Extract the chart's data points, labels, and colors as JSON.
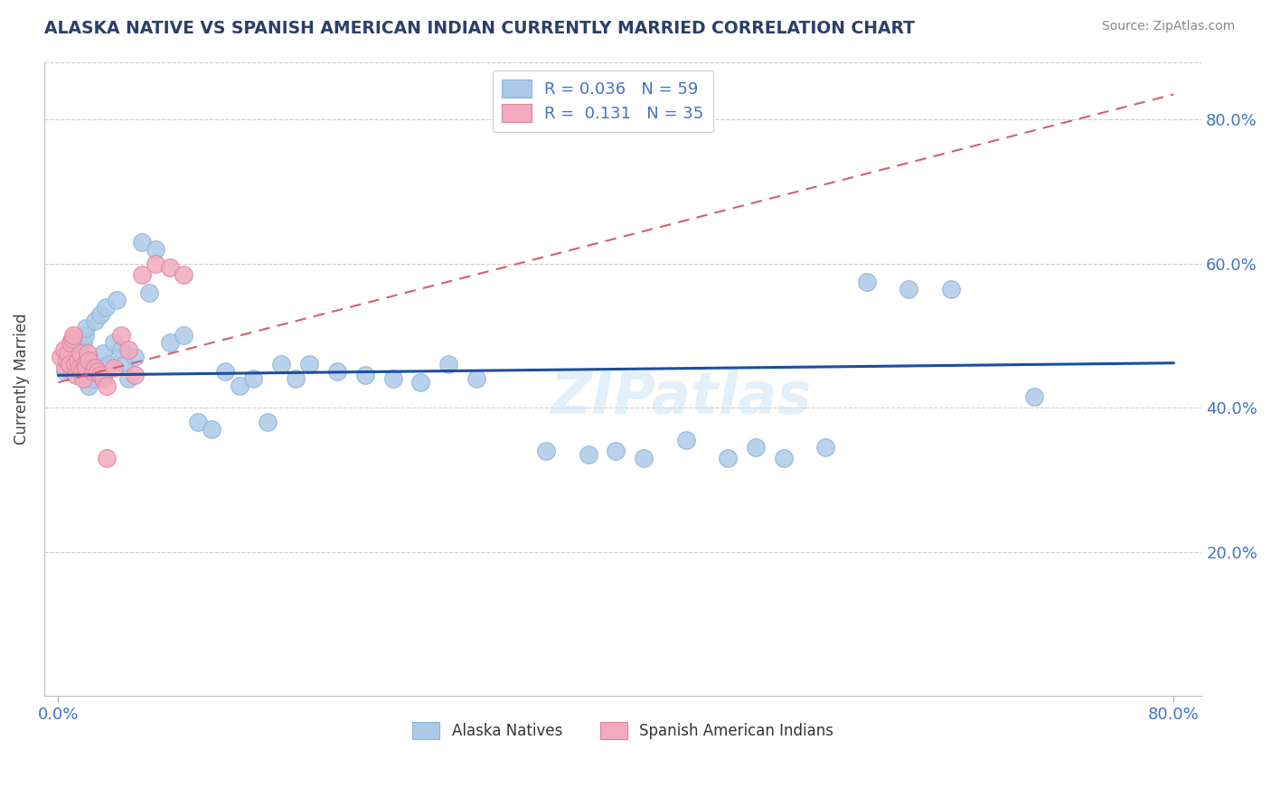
{
  "title": "ALASKA NATIVE VS SPANISH AMERICAN INDIAN CURRENTLY MARRIED CORRELATION CHART",
  "source": "Source: ZipAtlas.com",
  "ylabel": "Currently Married",
  "xlim": [
    -0.01,
    0.82
  ],
  "ylim": [
    0.0,
    0.88
  ],
  "ytick_vals": [
    0.2,
    0.4,
    0.6,
    0.8
  ],
  "ytick_labels": [
    "20.0%",
    "40.0%",
    "60.0%",
    "80.0%"
  ],
  "xtick_vals": [
    0.0,
    0.8
  ],
  "xtick_labels": [
    "0.0%",
    "80.0%"
  ],
  "grid_color": "#cccccc",
  "bg_color": "#ffffff",
  "watermark": "ZIPatlas",
  "alaska_color": "#adc9e8",
  "alaska_edge": "#8ab4d8",
  "spanish_color": "#f2abbe",
  "spanish_edge": "#e080a0",
  "trend_alaska_color": "#1a4fa0",
  "trend_spanish_color": "#d06070",
  "R_alaska": 0.036,
  "N_alaska": 59,
  "R_spanish": 0.131,
  "N_spanish": 35,
  "legend_labels": [
    "Alaska Natives",
    "Spanish American Indians"
  ],
  "ak_trend_x": [
    0.0,
    0.8
  ],
  "ak_trend_y": [
    0.445,
    0.462
  ],
  "sp_trend_x": [
    0.0,
    0.8
  ],
  "sp_trend_y": [
    0.435,
    0.835
  ],
  "alaska_x": [
    0.005,
    0.008,
    0.01,
    0.012,
    0.013,
    0.015,
    0.016,
    0.017,
    0.018,
    0.019,
    0.02,
    0.022,
    0.024,
    0.025,
    0.026,
    0.028,
    0.03,
    0.032,
    0.034,
    0.036,
    0.04,
    0.042,
    0.045,
    0.048,
    0.05,
    0.055,
    0.06,
    0.065,
    0.07,
    0.08,
    0.09,
    0.1,
    0.11,
    0.12,
    0.13,
    0.14,
    0.15,
    0.16,
    0.17,
    0.18,
    0.2,
    0.22,
    0.24,
    0.26,
    0.28,
    0.3,
    0.35,
    0.38,
    0.4,
    0.42,
    0.45,
    0.48,
    0.5,
    0.52,
    0.55,
    0.58,
    0.61,
    0.64,
    0.7
  ],
  "alaska_y": [
    0.45,
    0.46,
    0.475,
    0.48,
    0.465,
    0.47,
    0.455,
    0.445,
    0.49,
    0.5,
    0.51,
    0.43,
    0.465,
    0.44,
    0.52,
    0.45,
    0.53,
    0.475,
    0.54,
    0.46,
    0.49,
    0.55,
    0.48,
    0.46,
    0.44,
    0.47,
    0.63,
    0.56,
    0.62,
    0.49,
    0.5,
    0.38,
    0.37,
    0.45,
    0.43,
    0.44,
    0.38,
    0.46,
    0.44,
    0.46,
    0.45,
    0.445,
    0.44,
    0.435,
    0.46,
    0.44,
    0.34,
    0.335,
    0.34,
    0.33,
    0.355,
    0.33,
    0.345,
    0.33,
    0.345,
    0.575,
    0.565,
    0.565,
    0.415
  ],
  "spanish_x": [
    0.002,
    0.004,
    0.005,
    0.006,
    0.007,
    0.008,
    0.009,
    0.01,
    0.011,
    0.012,
    0.013,
    0.014,
    0.015,
    0.016,
    0.017,
    0.018,
    0.019,
    0.02,
    0.021,
    0.022,
    0.025,
    0.026,
    0.028,
    0.03,
    0.032,
    0.035,
    0.04,
    0.045,
    0.05,
    0.055,
    0.06,
    0.07,
    0.08,
    0.09,
    0.035
  ],
  "spanish_y": [
    0.47,
    0.48,
    0.455,
    0.465,
    0.475,
    0.46,
    0.49,
    0.495,
    0.5,
    0.46,
    0.445,
    0.465,
    0.455,
    0.475,
    0.45,
    0.44,
    0.46,
    0.455,
    0.475,
    0.465,
    0.45,
    0.455,
    0.45,
    0.445,
    0.44,
    0.43,
    0.455,
    0.5,
    0.48,
    0.445,
    0.585,
    0.6,
    0.595,
    0.585,
    0.33
  ]
}
